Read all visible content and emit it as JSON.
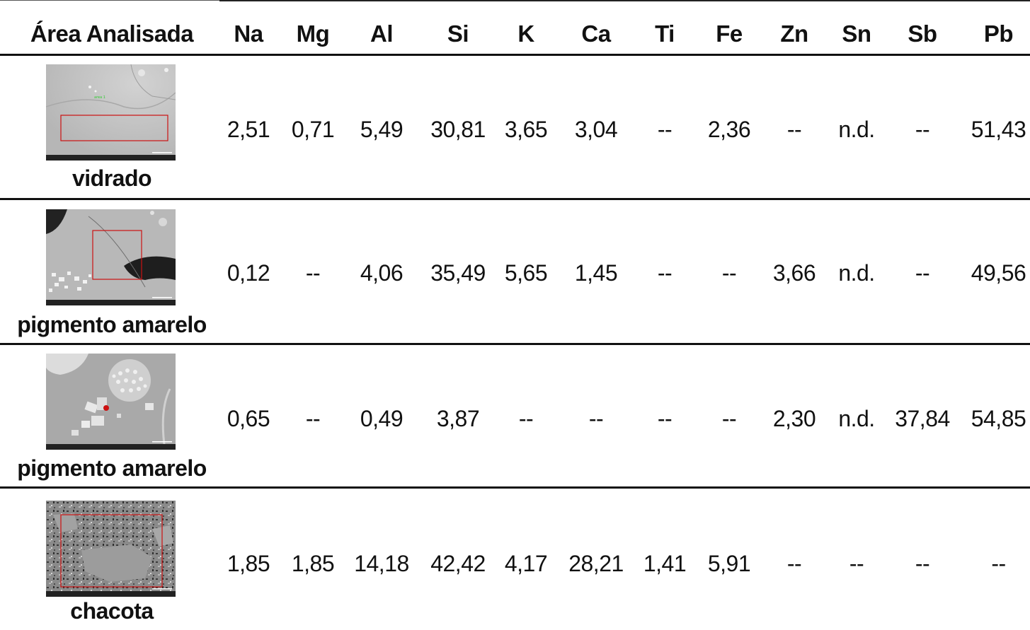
{
  "table": {
    "headers": [
      "Área Analisada",
      "Na",
      "Mg",
      "Al",
      "Si",
      "K",
      "Ca",
      "Ti",
      "Fe",
      "Zn",
      "Sn",
      "Sb",
      "Pb"
    ],
    "rows": [
      {
        "area": "vidrado",
        "image": "sem-micrograph-glaze",
        "values": [
          "2,51",
          "0,71",
          "5,49",
          "30,81",
          "3,65",
          "3,04",
          "--",
          "2,36",
          "--",
          "n.d.",
          "--",
          "51,43"
        ]
      },
      {
        "area": "pigmento amarelo",
        "image": "sem-micrograph-yellow-pigment",
        "values": [
          "0,12",
          "--",
          "4,06",
          "35,49",
          "5,65",
          "1,45",
          "--",
          "--",
          "3,66",
          "n.d.",
          "--",
          "49,56"
        ]
      },
      {
        "area": "pigmento amarelo",
        "image": "sem-micrograph-yellow-pigment-point",
        "values": [
          "0,65",
          "--",
          "0,49",
          "3,87",
          "--",
          "--",
          "--",
          "--",
          "2,30",
          "n.d.",
          "37,84",
          "54,85"
        ]
      },
      {
        "area": "chacota",
        "image": "sem-micrograph-ceramic-body",
        "values": [
          "1,85",
          "1,85",
          "14,18",
          "42,42",
          "4,17",
          "28,21",
          "1,41",
          "5,91",
          "--",
          "--",
          "--",
          "--"
        ]
      }
    ]
  },
  "colors": {
    "rule": "#111111",
    "marker_red": "#cc1111",
    "sem_gray": "#b4b4b4"
  }
}
